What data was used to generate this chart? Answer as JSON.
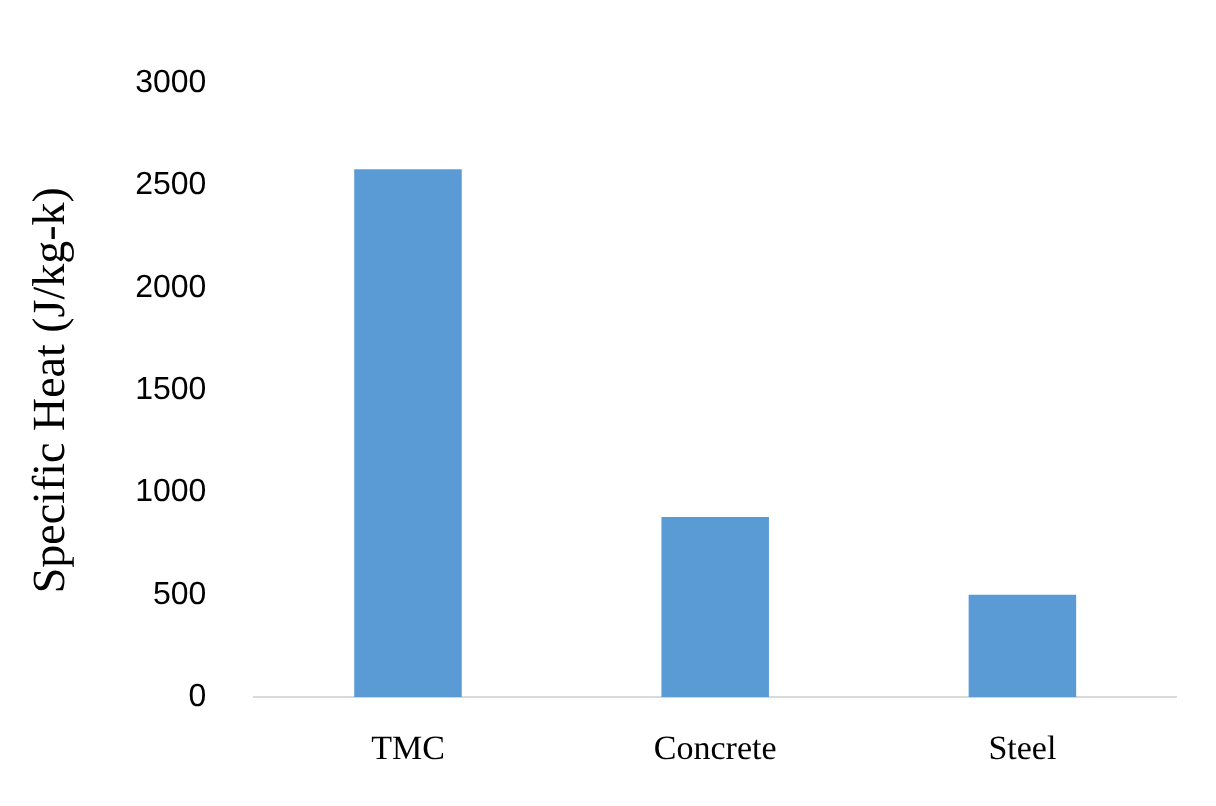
{
  "chart_data": {
    "type": "bar",
    "ylabel": "Specific Heat (J/kg-k)",
    "categories": [
      "TMC",
      "Concrete",
      "Steel"
    ],
    "values": [
      2580,
      880,
      500
    ],
    "color": "#5b9bd5",
    "ylim": [
      0,
      3000
    ],
    "yticks": [
      0,
      500,
      1000,
      1500,
      2000,
      2500,
      3000
    ],
    "grid": false,
    "legend": false
  }
}
